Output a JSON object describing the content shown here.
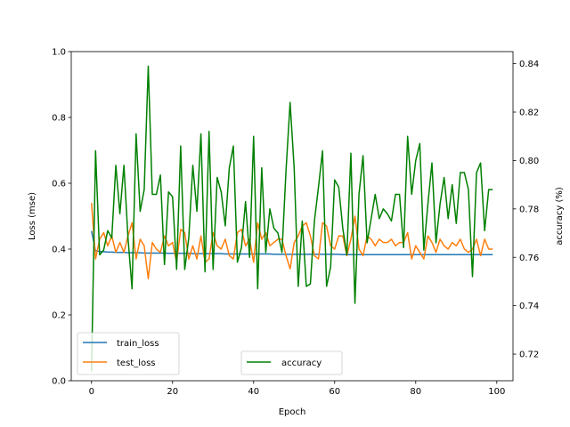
{
  "chart_data": {
    "type": "line",
    "xlabel": "Epoch",
    "ylabel_left": "Loss (mse)",
    "ylabel_right": "accuracy (%)",
    "xlim": [
      -5,
      104
    ],
    "ylim_left": [
      0.0,
      1.0
    ],
    "ylim_right": [
      0.709,
      0.845
    ],
    "xticks": [
      "0",
      "20",
      "40",
      "60",
      "80",
      "100"
    ],
    "yticks_left": [
      "0.0",
      "0.2",
      "0.4",
      "0.6",
      "0.8",
      "1.0"
    ],
    "yticks_right": [
      "0.72",
      "0.74",
      "0.76",
      "0.78",
      "0.80",
      "0.82",
      "0.84"
    ],
    "legend_left_position": "lower left",
    "legend_right_position": "lower center",
    "x": [
      0,
      1,
      2,
      3,
      4,
      5,
      6,
      7,
      8,
      9,
      10,
      11,
      12,
      13,
      14,
      15,
      16,
      17,
      18,
      19,
      20,
      21,
      22,
      23,
      24,
      25,
      26,
      27,
      28,
      29,
      30,
      31,
      32,
      33,
      34,
      35,
      36,
      37,
      38,
      39,
      40,
      41,
      42,
      43,
      44,
      45,
      46,
      47,
      48,
      49,
      50,
      51,
      52,
      53,
      54,
      55,
      56,
      57,
      58,
      59,
      60,
      61,
      62,
      63,
      64,
      65,
      66,
      67,
      68,
      69,
      70,
      71,
      72,
      73,
      74,
      75,
      76,
      77,
      78,
      79,
      80,
      81,
      82,
      83,
      84,
      85,
      86,
      87,
      88,
      89,
      90,
      91,
      92,
      93,
      94,
      95,
      96,
      97,
      98,
      99
    ],
    "series": [
      {
        "name": "train_loss",
        "axis": "left",
        "color": "#1f77b4",
        "values": [
          0.455,
          0.395,
          0.393,
          0.392,
          0.391,
          0.391,
          0.39,
          0.39,
          0.39,
          0.389,
          0.389,
          0.389,
          0.389,
          0.388,
          0.388,
          0.388,
          0.388,
          0.388,
          0.388,
          0.387,
          0.387,
          0.387,
          0.387,
          0.387,
          0.387,
          0.386,
          0.386,
          0.386,
          0.386,
          0.386,
          0.386,
          0.386,
          0.386,
          0.385,
          0.385,
          0.385,
          0.385,
          0.385,
          0.385,
          0.385,
          0.385,
          0.385,
          0.385,
          0.385,
          0.385,
          0.384,
          0.384,
          0.384,
          0.384,
          0.384,
          0.384,
          0.384,
          0.384,
          0.384,
          0.384,
          0.384,
          0.384,
          0.384,
          0.384,
          0.384,
          0.384,
          0.384,
          0.383,
          0.383,
          0.383,
          0.383,
          0.383,
          0.383,
          0.383,
          0.383,
          0.383,
          0.383,
          0.383,
          0.383,
          0.383,
          0.383,
          0.383,
          0.383,
          0.383,
          0.383,
          0.383,
          0.383,
          0.383,
          0.383,
          0.383,
          0.383,
          0.383,
          0.383,
          0.383,
          0.383,
          0.383,
          0.383,
          0.383,
          0.383,
          0.383,
          0.383,
          0.383,
          0.383,
          0.383,
          0.383
        ]
      },
      {
        "name": "test_loss",
        "axis": "left",
        "color": "#ff7f0e",
        "values": [
          0.54,
          0.37,
          0.43,
          0.45,
          0.41,
          0.44,
          0.39,
          0.42,
          0.39,
          0.44,
          0.48,
          0.37,
          0.43,
          0.41,
          0.31,
          0.42,
          0.4,
          0.39,
          0.44,
          0.41,
          0.42,
          0.36,
          0.46,
          0.45,
          0.37,
          0.41,
          0.37,
          0.44,
          0.36,
          0.37,
          0.45,
          0.41,
          0.4,
          0.43,
          0.38,
          0.37,
          0.45,
          0.46,
          0.41,
          0.43,
          0.36,
          0.48,
          0.43,
          0.45,
          0.41,
          0.42,
          0.43,
          0.43,
          0.38,
          0.34,
          0.42,
          0.44,
          0.47,
          0.48,
          0.44,
          0.38,
          0.37,
          0.48,
          0.47,
          0.41,
          0.4,
          0.44,
          0.44,
          0.38,
          0.43,
          0.5,
          0.4,
          0.38,
          0.44,
          0.43,
          0.41,
          0.43,
          0.42,
          0.42,
          0.43,
          0.41,
          0.42,
          0.42,
          0.45,
          0.37,
          0.41,
          0.39,
          0.37,
          0.44,
          0.42,
          0.39,
          0.43,
          0.41,
          0.4,
          0.42,
          0.41,
          0.43,
          0.4,
          0.39,
          0.4,
          0.43,
          0.38,
          0.43,
          0.4,
          0.4
        ]
      },
      {
        "name": "accuracy",
        "axis": "right",
        "color": "#008000",
        "values": [
          0.713,
          0.804,
          0.761,
          0.763,
          0.771,
          0.768,
          0.798,
          0.778,
          0.798,
          0.768,
          0.747,
          0.811,
          0.779,
          0.788,
          0.839,
          0.786,
          0.786,
          0.794,
          0.757,
          0.787,
          0.785,
          0.755,
          0.806,
          0.755,
          0.768,
          0.798,
          0.779,
          0.811,
          0.754,
          0.812,
          0.755,
          0.793,
          0.787,
          0.773,
          0.797,
          0.806,
          0.758,
          0.764,
          0.783,
          0.76,
          0.81,
          0.747,
          0.797,
          0.762,
          0.78,
          0.772,
          0.77,
          0.762,
          0.796,
          0.824,
          0.797,
          0.748,
          0.775,
          0.748,
          0.749,
          0.775,
          0.789,
          0.804,
          0.748,
          0.756,
          0.792,
          0.789,
          0.772,
          0.761,
          0.803,
          0.741,
          0.786,
          0.802,
          0.766,
          0.776,
          0.786,
          0.776,
          0.78,
          0.778,
          0.775,
          0.786,
          0.786,
          0.764,
          0.81,
          0.786,
          0.8,
          0.807,
          0.763,
          0.782,
          0.799,
          0.766,
          0.782,
          0.793,
          0.776,
          0.79,
          0.774,
          0.795,
          0.795,
          0.788,
          0.752,
          0.795,
          0.799,
          0.771,
          0.788,
          0.788
        ]
      }
    ]
  }
}
